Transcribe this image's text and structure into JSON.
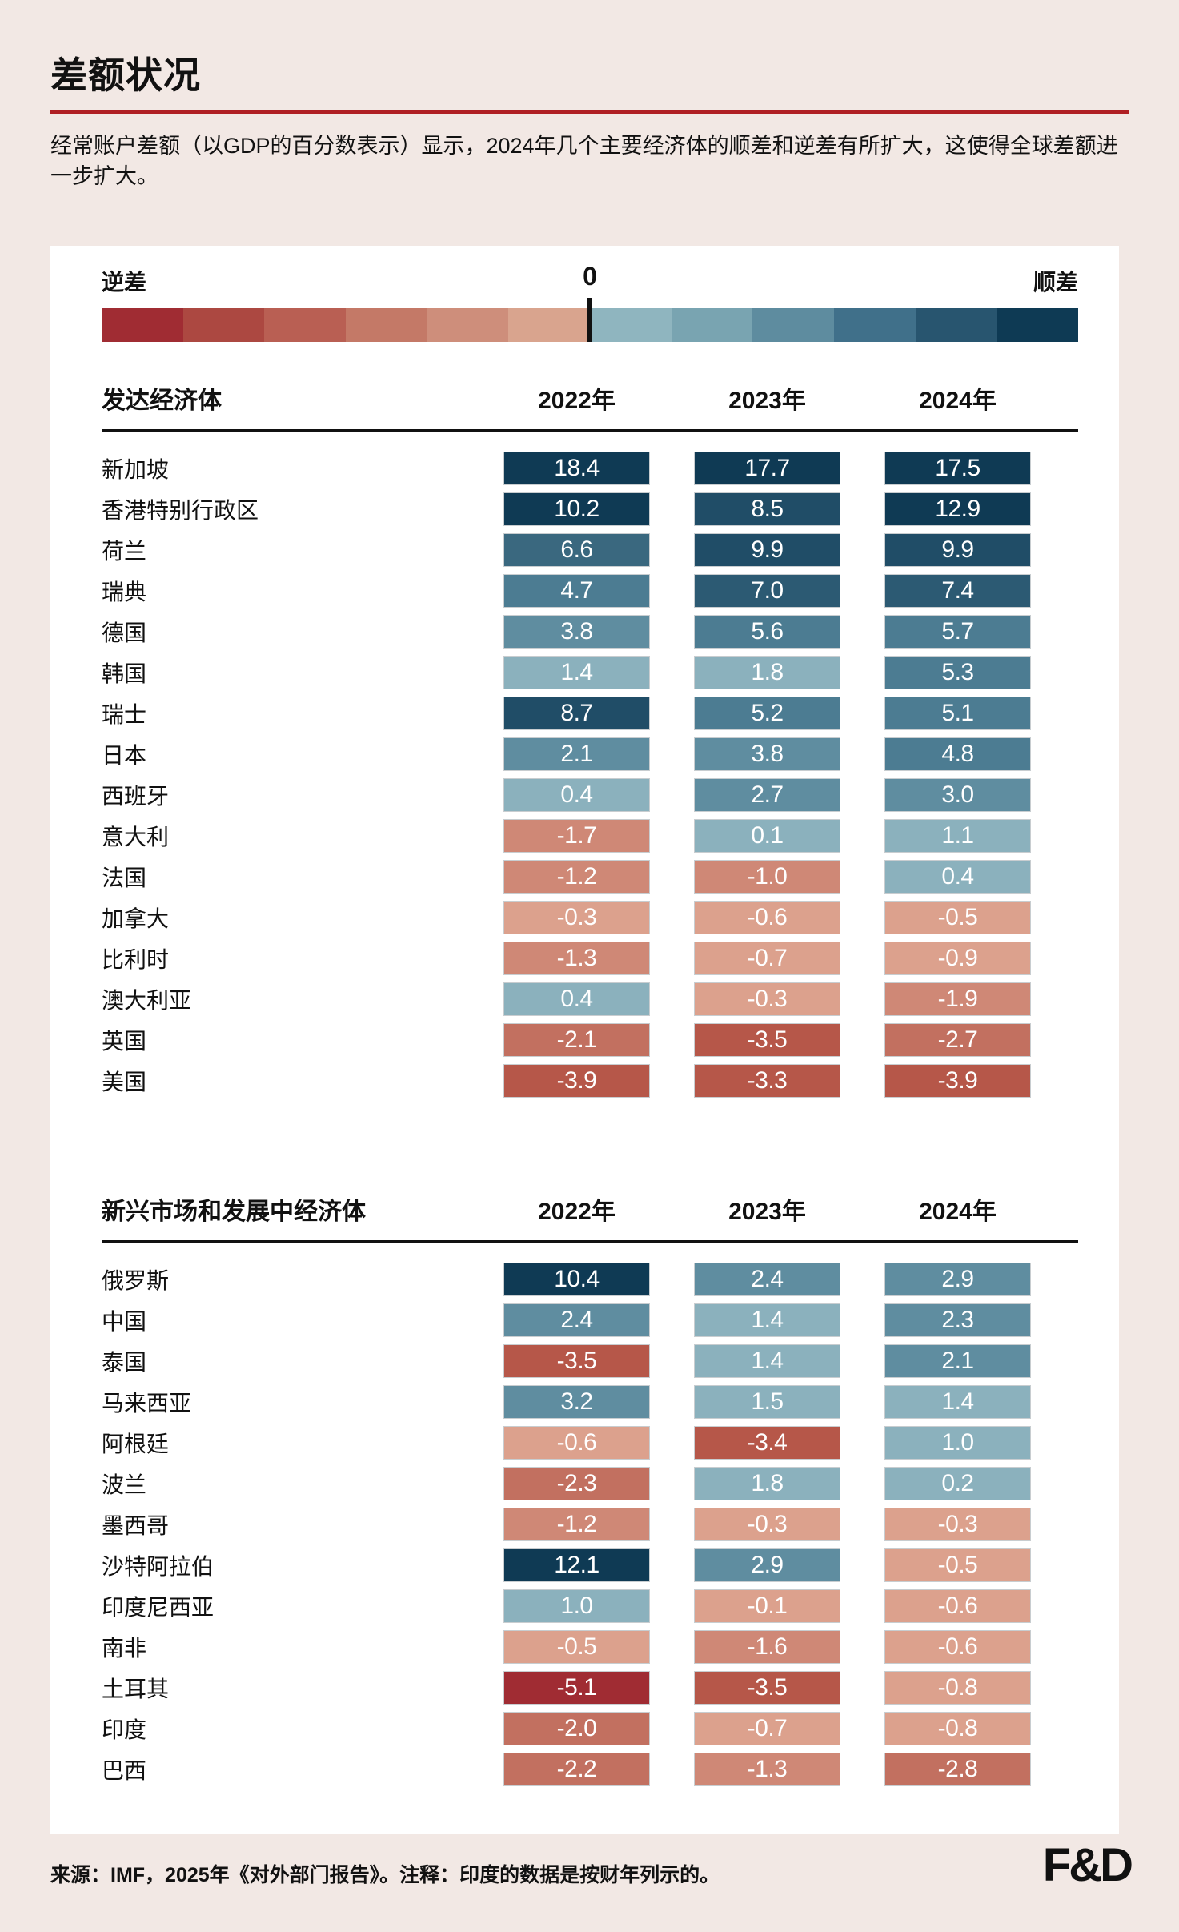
{
  "chart_data": {
    "type": "heatmap",
    "title": "差额状况",
    "subtitle": "经常账户差额（以GDP的百分数表示）显示，2024年几个主要经济体的顺差和逆差有所扩大，这使得全球差额进一步扩大。",
    "legend": {
      "deficit_label": "逆差",
      "zero_label": "0",
      "surplus_label": "顺差",
      "scale_colors_deficit_to_surplus": [
        "#A02C33",
        "#AC4841",
        "#B95F53",
        "#C47967",
        "#CE8E7B",
        "#D9A48E",
        "#8FB5BF",
        "#79A4B1",
        "#5E8C9F",
        "#40708A",
        "#28556F",
        "#0E3A54"
      ]
    },
    "columns": [
      "2022年",
      "2023年",
      "2024年"
    ],
    "groups": [
      {
        "name": "发达经济体",
        "rows": [
          {
            "label": "新加坡",
            "values": [
              18.4,
              17.7,
              17.5
            ]
          },
          {
            "label": "香港特别行政区",
            "values": [
              10.2,
              8.5,
              12.9
            ]
          },
          {
            "label": "荷兰",
            "values": [
              6.6,
              9.9,
              9.9
            ]
          },
          {
            "label": "瑞典",
            "values": [
              4.7,
              7.0,
              7.4
            ]
          },
          {
            "label": "德国",
            "values": [
              3.8,
              5.6,
              5.7
            ]
          },
          {
            "label": "韩国",
            "values": [
              1.4,
              1.8,
              5.3
            ]
          },
          {
            "label": "瑞士",
            "values": [
              8.7,
              5.2,
              5.1
            ]
          },
          {
            "label": "日本",
            "values": [
              2.1,
              3.8,
              4.8
            ]
          },
          {
            "label": "西班牙",
            "values": [
              0.4,
              2.7,
              3.0
            ]
          },
          {
            "label": "意大利",
            "values": [
              -1.7,
              0.1,
              1.1
            ]
          },
          {
            "label": "法国",
            "values": [
              -1.2,
              -1.0,
              0.4
            ]
          },
          {
            "label": "加拿大",
            "values": [
              -0.3,
              -0.6,
              -0.5
            ]
          },
          {
            "label": "比利时",
            "values": [
              -1.3,
              -0.7,
              -0.9
            ]
          },
          {
            "label": "澳大利亚",
            "values": [
              0.4,
              -0.3,
              -1.9
            ]
          },
          {
            "label": "英国",
            "values": [
              -2.1,
              -3.5,
              -2.7
            ]
          },
          {
            "label": "美国",
            "values": [
              -3.9,
              -3.3,
              -3.9
            ]
          }
        ]
      },
      {
        "name": "新兴市场和发展中经济体",
        "rows": [
          {
            "label": "俄罗斯",
            "values": [
              10.4,
              2.4,
              2.9
            ]
          },
          {
            "label": "中国",
            "values": [
              2.4,
              1.4,
              2.3
            ]
          },
          {
            "label": "泰国",
            "values": [
              -3.5,
              1.4,
              2.1
            ]
          },
          {
            "label": "马来西亚",
            "values": [
              3.2,
              1.5,
              1.4
            ]
          },
          {
            "label": "阿根廷",
            "values": [
              -0.6,
              -3.4,
              1.0
            ]
          },
          {
            "label": "波兰",
            "values": [
              -2.3,
              1.8,
              0.2
            ]
          },
          {
            "label": "墨西哥",
            "values": [
              -1.2,
              -0.3,
              -0.3
            ]
          },
          {
            "label": "沙特阿拉伯",
            "values": [
              12.1,
              2.9,
              -0.5
            ]
          },
          {
            "label": "印度尼西亚",
            "values": [
              1.0,
              -0.1,
              -0.6
            ]
          },
          {
            "label": "南非",
            "values": [
              -0.5,
              -1.6,
              -0.6
            ]
          },
          {
            "label": "土耳其",
            "values": [
              -5.1,
              -3.5,
              -0.8
            ]
          },
          {
            "label": "印度",
            "values": [
              -2.0,
              -0.7,
              -0.8
            ]
          },
          {
            "label": "巴西",
            "values": [
              -2.2,
              -1.3,
              -2.8
            ]
          }
        ]
      }
    ],
    "value_color_buckets": {
      "positive_min_hex": [
        [
          10,
          "#0F3A54"
        ],
        [
          8,
          "#204D67"
        ],
        [
          7,
          "#2C5A73"
        ],
        [
          6,
          "#3A687F"
        ],
        [
          4,
          "#4C7C92"
        ],
        [
          2,
          "#5F8DA0"
        ],
        [
          0,
          "#8BB1BD"
        ]
      ],
      "negative_max_hex": [
        [
          -5,
          "#A02C33"
        ],
        [
          -3,
          "#B65749"
        ],
        [
          -2,
          "#C27060"
        ],
        [
          -1,
          "#CF8876"
        ],
        [
          0,
          "#DCA18D"
        ]
      ]
    },
    "layout": {
      "grid": false,
      "legend_position": "top",
      "value_labels": "inside cells, one decimal"
    }
  },
  "footer": {
    "source_note": "来源：IMF，2025年《对外部门报告》。注释：印度的数据是按财年列示的。",
    "logo": "F&D"
  },
  "colors": {
    "page_bg": "#F2E8E4",
    "card_bg": "#FFFFFF",
    "title_rule": "#B01F23",
    "text": "#111111",
    "cell_text": "#FFFFFF",
    "table_rule": "#111111",
    "cell_border": "#C8CDD0"
  }
}
